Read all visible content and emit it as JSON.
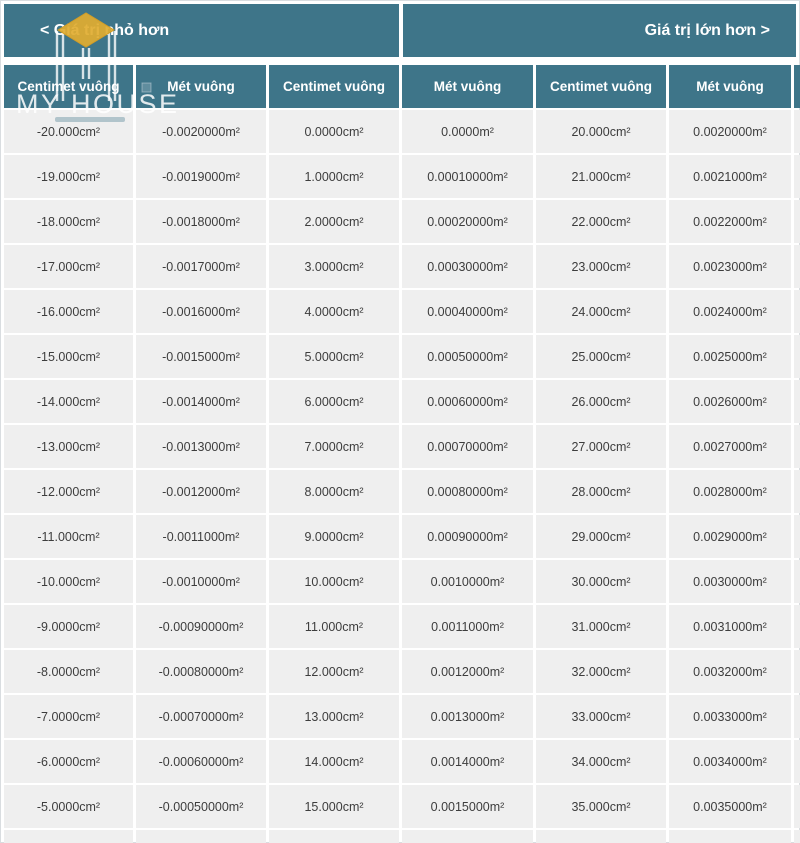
{
  "banner": {
    "left": "< Giá trị nhỏ hơn",
    "right": "Giá trị lớn hơn >"
  },
  "columns": [
    "Centimet vuông",
    "Mét vuông",
    "Centimet vuông",
    "Mét vuông",
    "Centimet vuông",
    "Mét vuông"
  ],
  "watermark": {
    "text": "MY HOUSE"
  },
  "colors": {
    "header_teal": "#3e7589",
    "row_gray": "#efefef",
    "logo_gold": "#e1ac30",
    "cell_text": "#3d3d3d"
  },
  "rows": [
    [
      "-20.000cm²",
      "-0.0020000m²",
      "0.0000cm²",
      "0.0000m²",
      "20.000cm²",
      "0.0020000m²"
    ],
    [
      "-19.000cm²",
      "-0.0019000m²",
      "1.0000cm²",
      "0.00010000m²",
      "21.000cm²",
      "0.0021000m²"
    ],
    [
      "-18.000cm²",
      "-0.0018000m²",
      "2.0000cm²",
      "0.00020000m²",
      "22.000cm²",
      "0.0022000m²"
    ],
    [
      "-17.000cm²",
      "-0.0017000m²",
      "3.0000cm²",
      "0.00030000m²",
      "23.000cm²",
      "0.0023000m²"
    ],
    [
      "-16.000cm²",
      "-0.0016000m²",
      "4.0000cm²",
      "0.00040000m²",
      "24.000cm²",
      "0.0024000m²"
    ],
    [
      "-15.000cm²",
      "-0.0015000m²",
      "5.0000cm²",
      "0.00050000m²",
      "25.000cm²",
      "0.0025000m²"
    ],
    [
      "-14.000cm²",
      "-0.0014000m²",
      "6.0000cm²",
      "0.00060000m²",
      "26.000cm²",
      "0.0026000m²"
    ],
    [
      "-13.000cm²",
      "-0.0013000m²",
      "7.0000cm²",
      "0.00070000m²",
      "27.000cm²",
      "0.0027000m²"
    ],
    [
      "-12.000cm²",
      "-0.0012000m²",
      "8.0000cm²",
      "0.00080000m²",
      "28.000cm²",
      "0.0028000m²"
    ],
    [
      "-11.000cm²",
      "-0.0011000m²",
      "9.0000cm²",
      "0.00090000m²",
      "29.000cm²",
      "0.0029000m²"
    ],
    [
      "-10.000cm²",
      "-0.0010000m²",
      "10.000cm²",
      "0.0010000m²",
      "30.000cm²",
      "0.0030000m²"
    ],
    [
      "-9.0000cm²",
      "-0.00090000m²",
      "11.000cm²",
      "0.0011000m²",
      "31.000cm²",
      "0.0031000m²"
    ],
    [
      "-8.0000cm²",
      "-0.00080000m²",
      "12.000cm²",
      "0.0012000m²",
      "32.000cm²",
      "0.0032000m²"
    ],
    [
      "-7.0000cm²",
      "-0.00070000m²",
      "13.000cm²",
      "0.0013000m²",
      "33.000cm²",
      "0.0033000m²"
    ],
    [
      "-6.0000cm²",
      "-0.00060000m²",
      "14.000cm²",
      "0.0014000m²",
      "34.000cm²",
      "0.0034000m²"
    ],
    [
      "-5.0000cm²",
      "-0.00050000m²",
      "15.000cm²",
      "0.0015000m²",
      "35.000cm²",
      "0.0035000m²"
    ]
  ]
}
